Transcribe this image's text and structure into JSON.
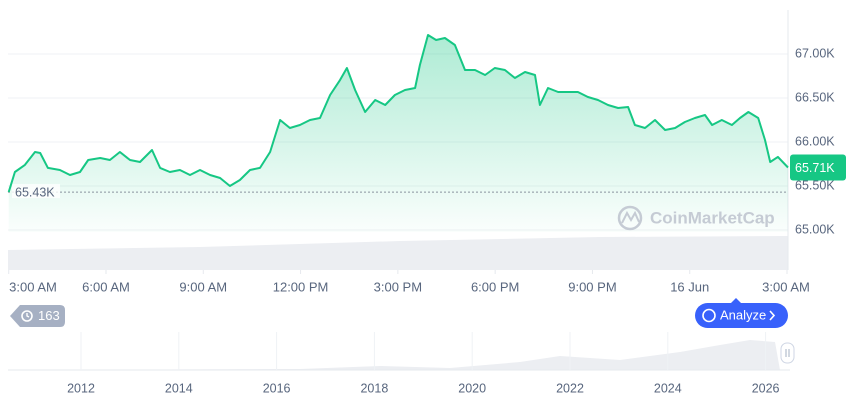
{
  "chart_data": {
    "type": "line",
    "color": "#16c784",
    "x": [
      0,
      0.19,
      0.5,
      0.81,
      0.97,
      1.21,
      1.58,
      1.89,
      2.2,
      2.45,
      2.82,
      3.12,
      3.43,
      3.74,
      4.05,
      4.42,
      4.67,
      4.97,
      5.28,
      5.59,
      5.9,
      6.21,
      6.52,
      6.82,
      7.13,
      7.44,
      7.75,
      8.06,
      8.37,
      8.67,
      8.98,
      9.29,
      9.6,
      9.91,
      10.22,
      10.43,
      10.68,
      10.99,
      11.3,
      11.61,
      11.91,
      12.22,
      12.53,
      12.68,
      12.93,
      13.18,
      13.45,
      13.76,
      14.07,
      14.38,
      14.69,
      14.99,
      15.3,
      15.61,
      15.92,
      16.23,
      16.38,
      16.63,
      16.94,
      17.25,
      17.55,
      17.86,
      18.17,
      18.48,
      18.79,
      19.1,
      19.31,
      19.62,
      19.93,
      20.24,
      20.55,
      20.85,
      21.16,
      21.47,
      21.69,
      21.99,
      22.3,
      22.55,
      22.81,
      23.11,
      23.32,
      23.48,
      23.72,
      24.03
    ],
    "values": [
      65430,
      65659,
      65739,
      65886,
      65875,
      65705,
      65682,
      65625,
      65659,
      65795,
      65818,
      65795,
      65886,
      65795,
      65773,
      65909,
      65705,
      65659,
      65682,
      65625,
      65682,
      65625,
      65591,
      65500,
      65568,
      65682,
      65705,
      65886,
      66250,
      66159,
      66193,
      66250,
      66273,
      66534,
      66705,
      66841,
      66591,
      66341,
      66477,
      66420,
      66534,
      66591,
      66614,
      66875,
      67216,
      67159,
      67182,
      67102,
      66818,
      66818,
      66761,
      66841,
      66818,
      66727,
      66795,
      66761,
      66420,
      66614,
      66568,
      66568,
      66568,
      66511,
      66477,
      66420,
      66386,
      66398,
      66193,
      66159,
      66250,
      66136,
      66159,
      66227,
      66273,
      66307,
      66193,
      66250,
      66193,
      66273,
      66341,
      66273,
      66023,
      65773,
      65830,
      65710
    ],
    "xlim": [
      0,
      24.03
    ],
    "ylim": [
      64545,
      67500
    ],
    "xticks": [
      {
        "value": 0,
        "label": "3:00 AM"
      },
      {
        "value": 3,
        "label": "6:00 AM"
      },
      {
        "value": 6,
        "label": "9:00 AM"
      },
      {
        "value": 9,
        "label": "12:00 PM"
      },
      {
        "value": 12,
        "label": "3:00 PM"
      },
      {
        "value": 15,
        "label": "6:00 PM"
      },
      {
        "value": 18,
        "label": "9:00 PM"
      },
      {
        "value": 21,
        "label": "16 Jun"
      },
      {
        "value": 24,
        "label": "3:00 AM"
      }
    ],
    "yticks": [
      {
        "value": 65000,
        "label": "65.00K"
      },
      {
        "value": 65500,
        "label": "65.50K"
      },
      {
        "value": 66000,
        "label": "66.00K"
      },
      {
        "value": 66500,
        "label": "66.50K"
      },
      {
        "value": 67000,
        "label": "67.00K"
      }
    ],
    "grid": true,
    "open_price": {
      "value": 65430,
      "label": "65.43K"
    },
    "current_price": {
      "value": 65710,
      "label": "65.71K"
    },
    "watermark": "CoinMarketCap",
    "history_badge": 163,
    "analyze_button": "Analyze",
    "navigator_years": [
      "2012",
      "2014",
      "2016",
      "2018",
      "2020",
      "2022",
      "2024",
      "2026"
    ]
  }
}
